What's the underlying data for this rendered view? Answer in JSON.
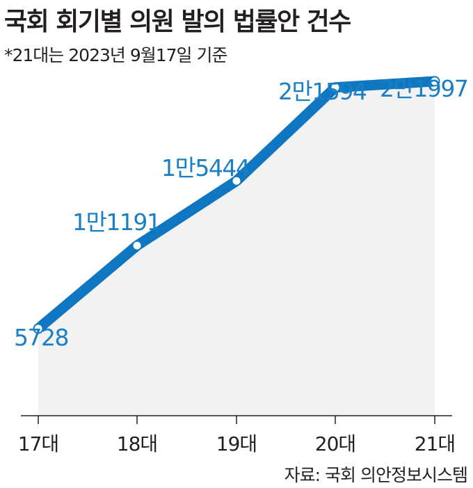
{
  "header": {
    "title": "국회 회기별 의원 발의 법률안 건수",
    "subtitle": "*21대는 2023년 9월17일 기준"
  },
  "footer": {
    "source": "자료: 국회 의안정보시스템"
  },
  "colors": {
    "line": "#0f77c1",
    "label": "#1a7fc4",
    "area": "#f2f2f2",
    "axis": "#231f20",
    "marker_fill": "#ffffff"
  },
  "chart_data": {
    "type": "line",
    "title": "국회 회기별 의원 발의 법률안 건수",
    "subtitle": "*21대는 2023년 9월17일 기준",
    "categories": [
      "17대",
      "18대",
      "19대",
      "20대",
      "21대"
    ],
    "values": [
      5728,
      11191,
      15444,
      21594,
      21997
    ],
    "data_labels": [
      "5728",
      "1만1191",
      "1만5444",
      "2만1594",
      "2만1997"
    ],
    "xlabel": "",
    "ylabel": "",
    "ylim": [
      0,
      23000
    ],
    "grid": false,
    "area_fill": true,
    "markers": "hollow-circle"
  }
}
